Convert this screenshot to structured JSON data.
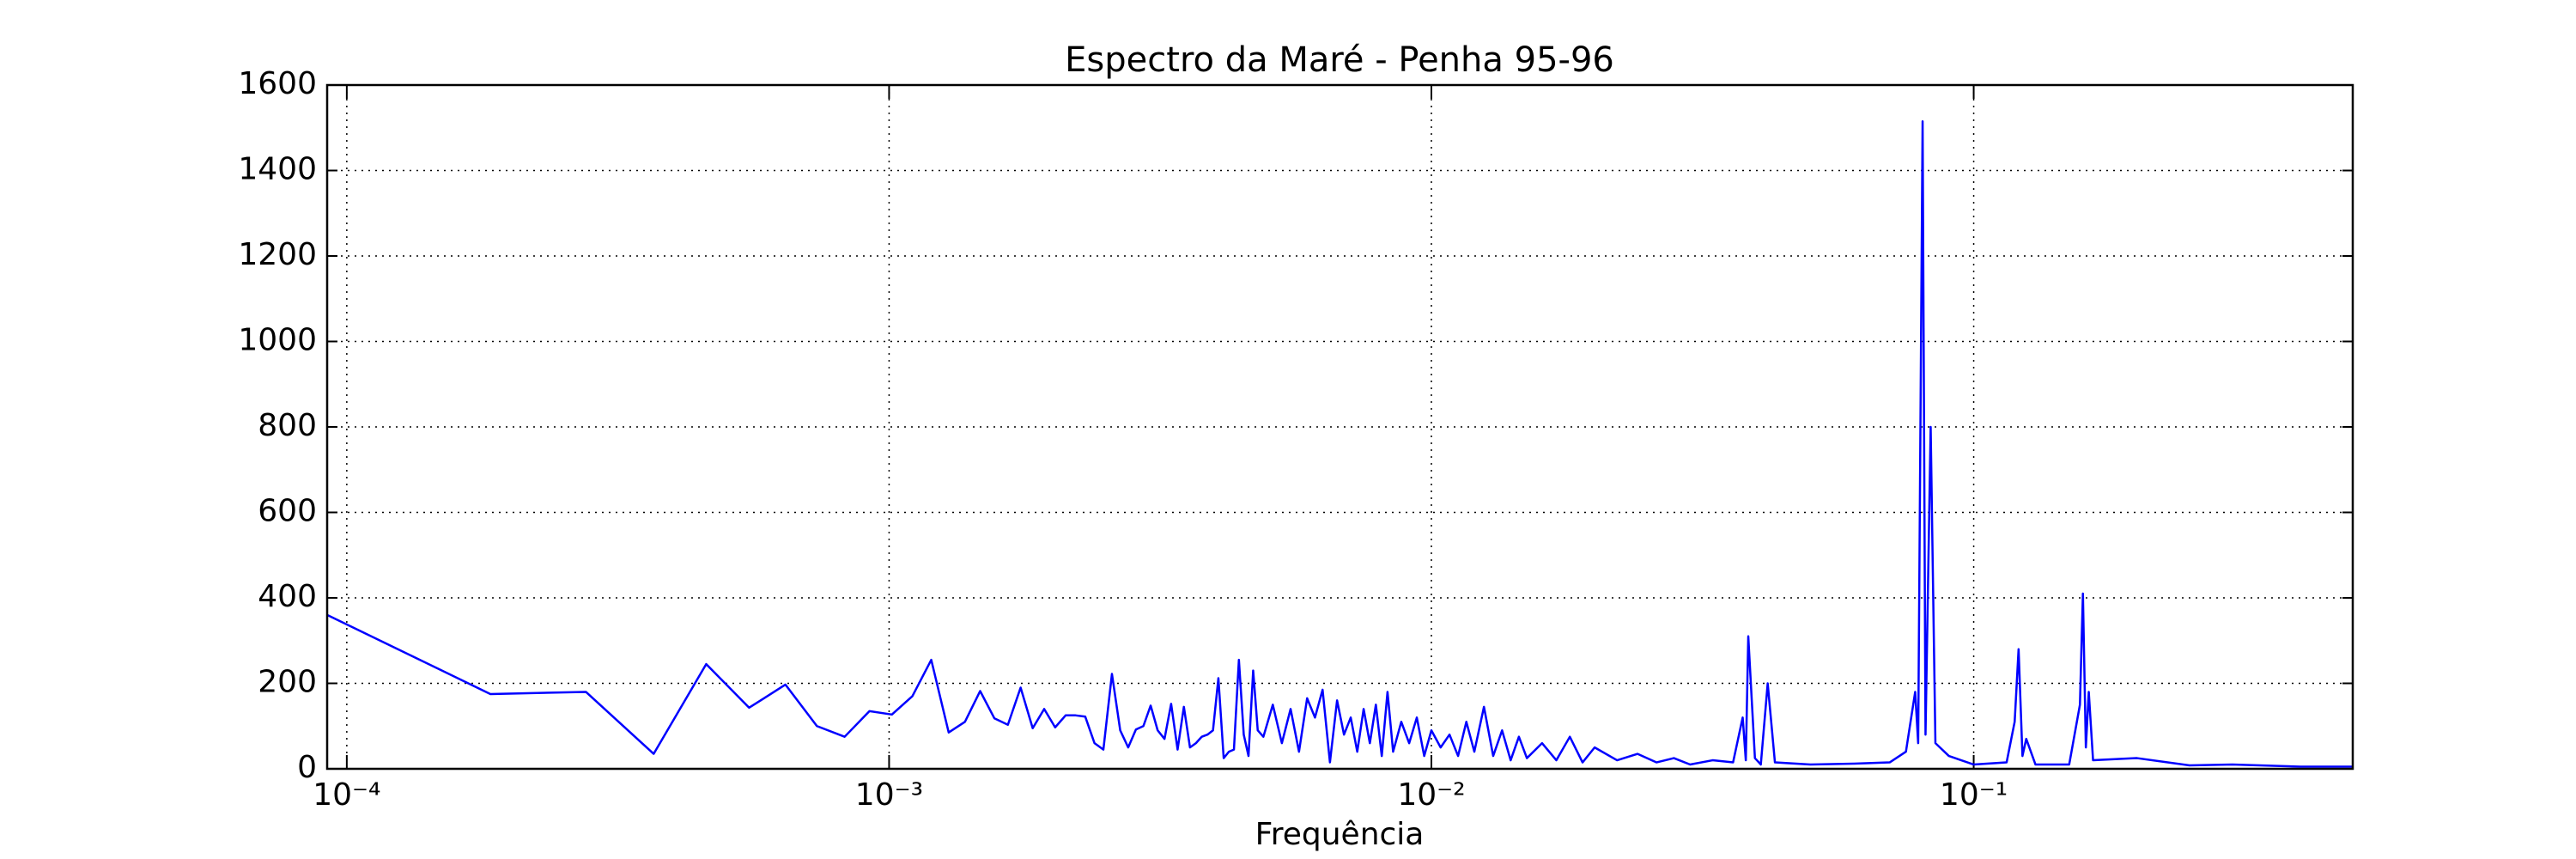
{
  "chart_data": {
    "type": "line",
    "title": "Espectro da Maré - Penha 95-96",
    "xlabel": "Frequência",
    "xscale": "log",
    "grid": true,
    "xlim": [
      9.2e-05,
      0.5
    ],
    "ylim": [
      0,
      1600
    ],
    "xticks": [
      {
        "value": 0.0001,
        "label": "10⁻⁴"
      },
      {
        "value": 0.001,
        "label": "10⁻³"
      },
      {
        "value": 0.01,
        "label": "10⁻²"
      },
      {
        "value": 0.1,
        "label": "10⁻¹"
      }
    ],
    "yticks": [
      0,
      200,
      400,
      600,
      800,
      1000,
      1200,
      1400,
      1600
    ],
    "x": [
      9.2e-05,
      0.000184,
      0.000276,
      0.000368,
      0.00046,
      0.000552,
      0.000644,
      0.000736,
      0.000828,
      0.00092,
      0.001012,
      0.001104,
      0.001196,
      0.001288,
      0.00138,
      0.001472,
      0.001564,
      0.001656,
      0.001748,
      0.00184,
      0.001932,
      0.002024,
      0.002116,
      0.002208,
      0.0023,
      0.002392,
      0.002484,
      0.002576,
      0.002668,
      0.00276,
      0.002852,
      0.002944,
      0.003036,
      0.003128,
      0.00322,
      0.003312,
      0.003404,
      0.003496,
      0.003588,
      0.00368,
      0.003772,
      0.003864,
      0.003956,
      0.004048,
      0.00414,
      0.004232,
      0.004324,
      0.004416,
      0.004508,
      0.0046,
      0.004692,
      0.004784,
      0.0049,
      0.0051,
      0.0053,
      0.0055,
      0.0057,
      0.0059,
      0.0061,
      0.0063,
      0.0065,
      0.0067,
      0.0069,
      0.0071,
      0.0073,
      0.0075,
      0.0077,
      0.0079,
      0.0081,
      0.0083,
      0.0085,
      0.0088,
      0.0091,
      0.0094,
      0.0097,
      0.01,
      0.0104,
      0.0108,
      0.0112,
      0.0116,
      0.012,
      0.0125,
      0.013,
      0.0135,
      0.014,
      0.0145,
      0.015,
      0.016,
      0.017,
      0.018,
      0.019,
      0.02,
      0.022,
      0.024,
      0.026,
      0.028,
      0.03,
      0.033,
      0.036,
      0.0375,
      0.038,
      0.0384,
      0.0395,
      0.0405,
      0.0417,
      0.043,
      0.05,
      0.06,
      0.07,
      0.075,
      0.078,
      0.079,
      0.0805,
      0.0815,
      0.0833,
      0.085,
      0.09,
      0.1,
      0.115,
      0.119,
      0.121,
      0.123,
      0.125,
      0.13,
      0.15,
      0.157,
      0.159,
      0.161,
      0.163,
      0.166,
      0.2,
      0.25,
      0.3,
      0.4,
      0.5
    ],
    "series": [
      {
        "color": "#0000ff",
        "values": [
          360,
          175,
          180,
          35,
          245,
          143,
          197,
          100,
          75,
          135,
          127,
          170,
          255,
          85,
          110,
          182,
          118,
          103,
          190,
          95,
          140,
          97,
          125,
          125,
          122,
          60,
          45,
          222,
          90,
          50,
          92,
          100,
          148,
          90,
          70,
          152,
          45,
          145,
          50,
          60,
          75,
          80,
          90,
          212,
          25,
          40,
          45,
          255,
          80,
          30,
          230,
          90,
          75,
          150,
          60,
          140,
          40,
          165,
          120,
          185,
          15,
          160,
          80,
          120,
          40,
          140,
          60,
          150,
          30,
          180,
          40,
          110,
          60,
          120,
          30,
          90,
          50,
          80,
          30,
          110,
          40,
          145,
          30,
          90,
          20,
          75,
          25,
          60,
          20,
          75,
          15,
          50,
          20,
          35,
          15,
          25,
          10,
          20,
          15,
          120,
          20,
          310,
          25,
          10,
          200,
          15,
          10,
          12,
          15,
          40,
          180,
          60,
          1515,
          80,
          800,
          60,
          30,
          10,
          15,
          110,
          280,
          30,
          70,
          10,
          10,
          150,
          410,
          50,
          180,
          20,
          25,
          8,
          10,
          5,
          5
        ]
      }
    ]
  }
}
